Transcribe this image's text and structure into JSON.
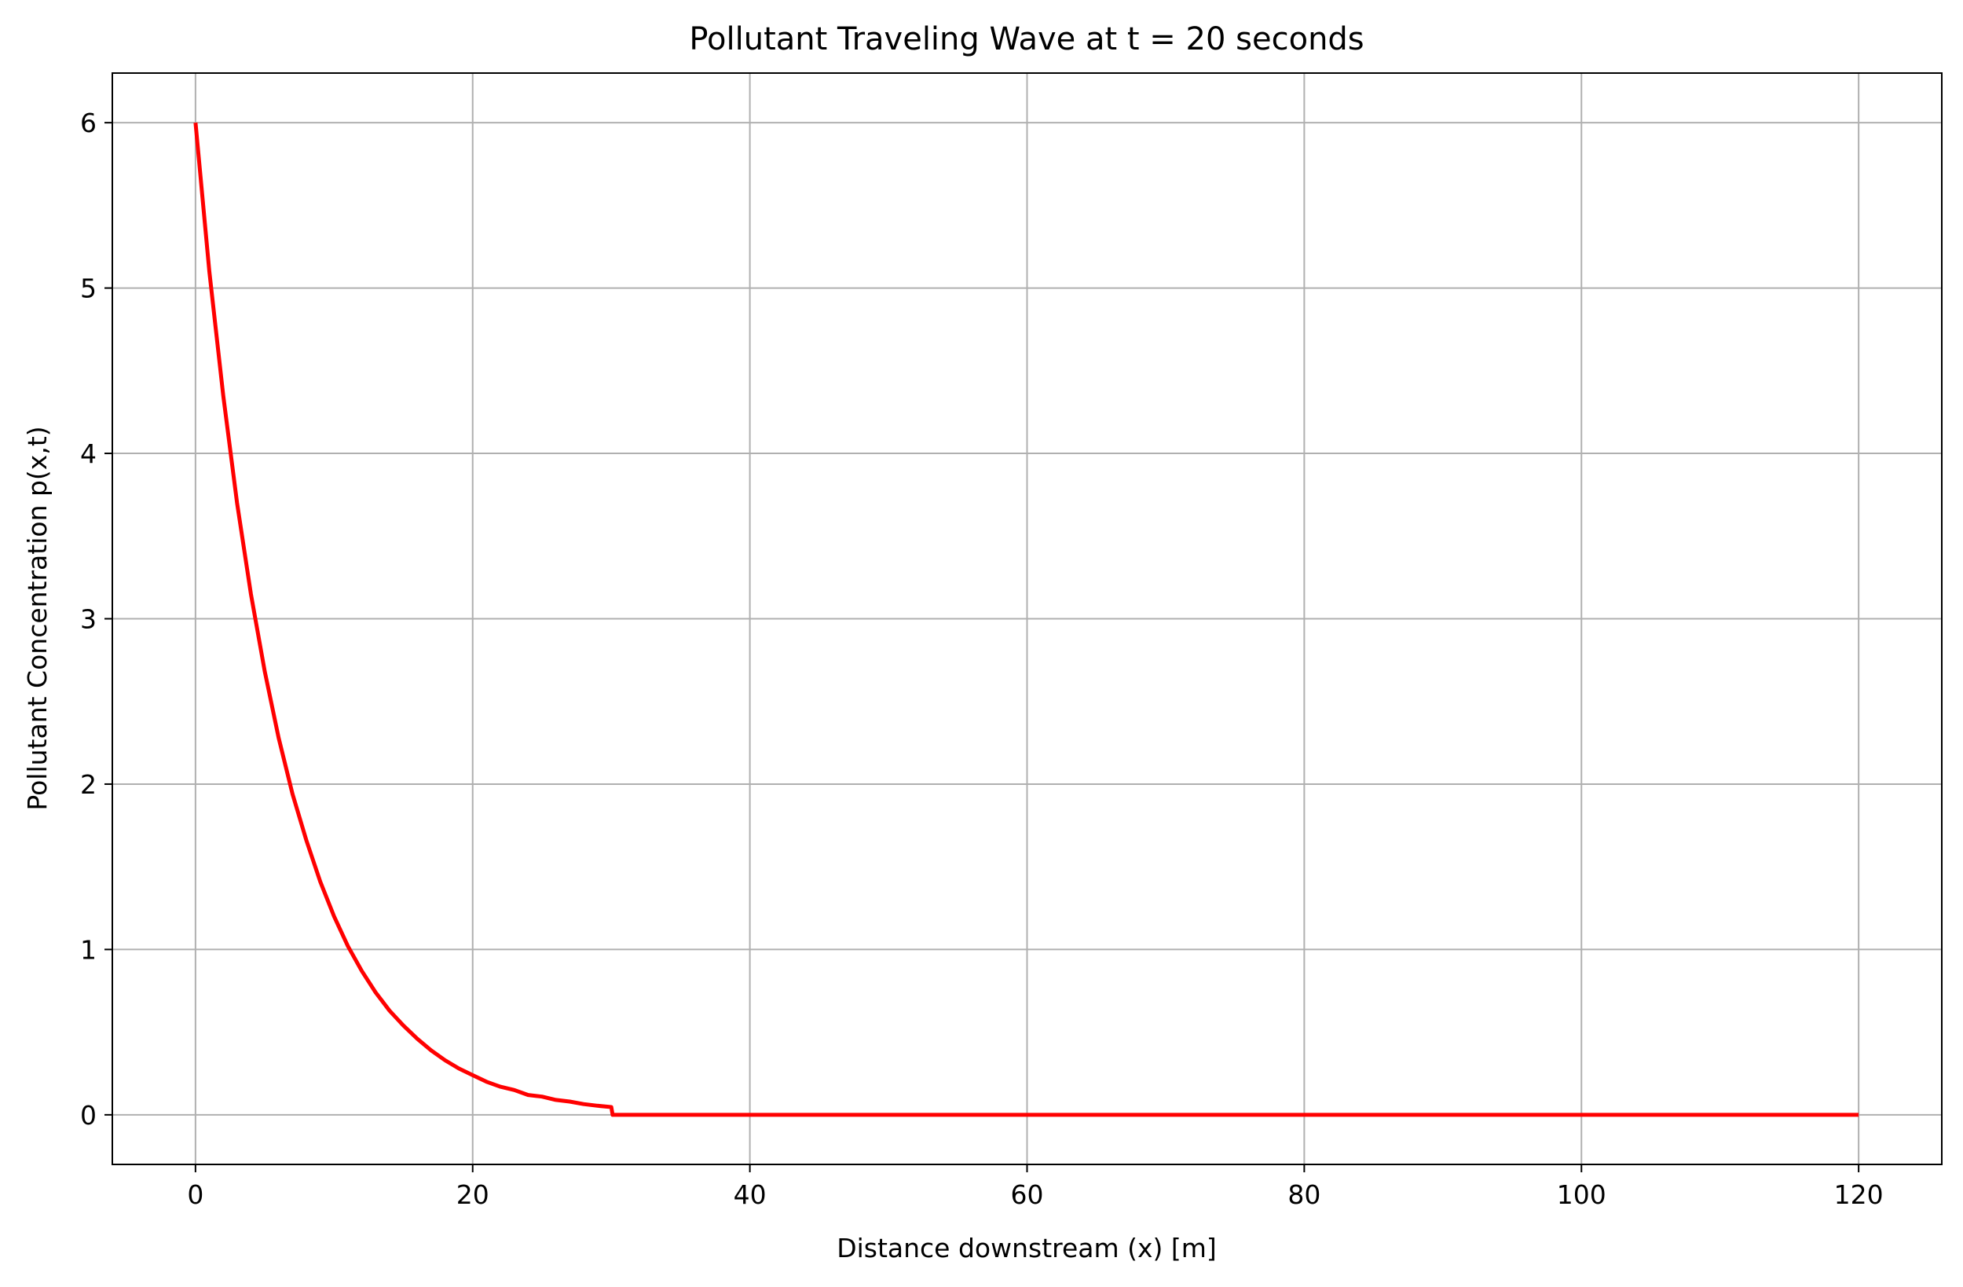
{
  "chart_data": {
    "type": "line",
    "title": "Pollutant Traveling Wave at t = 20 seconds",
    "xlabel": "Distance downstream (x) [m]",
    "ylabel": "Pollutant Concentration p(x,t)",
    "xlim": [
      -6,
      126
    ],
    "ylim": [
      -0.3,
      6.3
    ],
    "xticks": [
      0,
      20,
      40,
      60,
      80,
      100,
      120
    ],
    "yticks": [
      0,
      1,
      2,
      3,
      4,
      5,
      6
    ],
    "grid": true,
    "colors": {
      "line": "#ff0000",
      "grid": "#b0b0b0"
    },
    "series": [
      {
        "x": [
          0,
          1,
          2,
          3,
          4,
          5,
          6,
          7,
          8,
          9,
          10,
          11,
          12,
          13,
          14,
          15,
          16,
          17,
          18,
          19,
          20,
          21,
          22,
          23,
          24,
          25,
          26,
          27,
          28,
          29,
          30,
          30.1,
          40,
          60,
          80,
          100,
          120
        ],
        "y": [
          6.0,
          5.1,
          4.35,
          3.7,
          3.15,
          2.68,
          2.28,
          1.94,
          1.66,
          1.41,
          1.2,
          1.02,
          0.87,
          0.74,
          0.63,
          0.54,
          0.46,
          0.39,
          0.33,
          0.28,
          0.24,
          0.2,
          0.17,
          0.15,
          0.12,
          0.11,
          0.09,
          0.08,
          0.065,
          0.055,
          0.047,
          0.0,
          0.0,
          0.0,
          0.0,
          0.0,
          0.0
        ]
      }
    ]
  }
}
